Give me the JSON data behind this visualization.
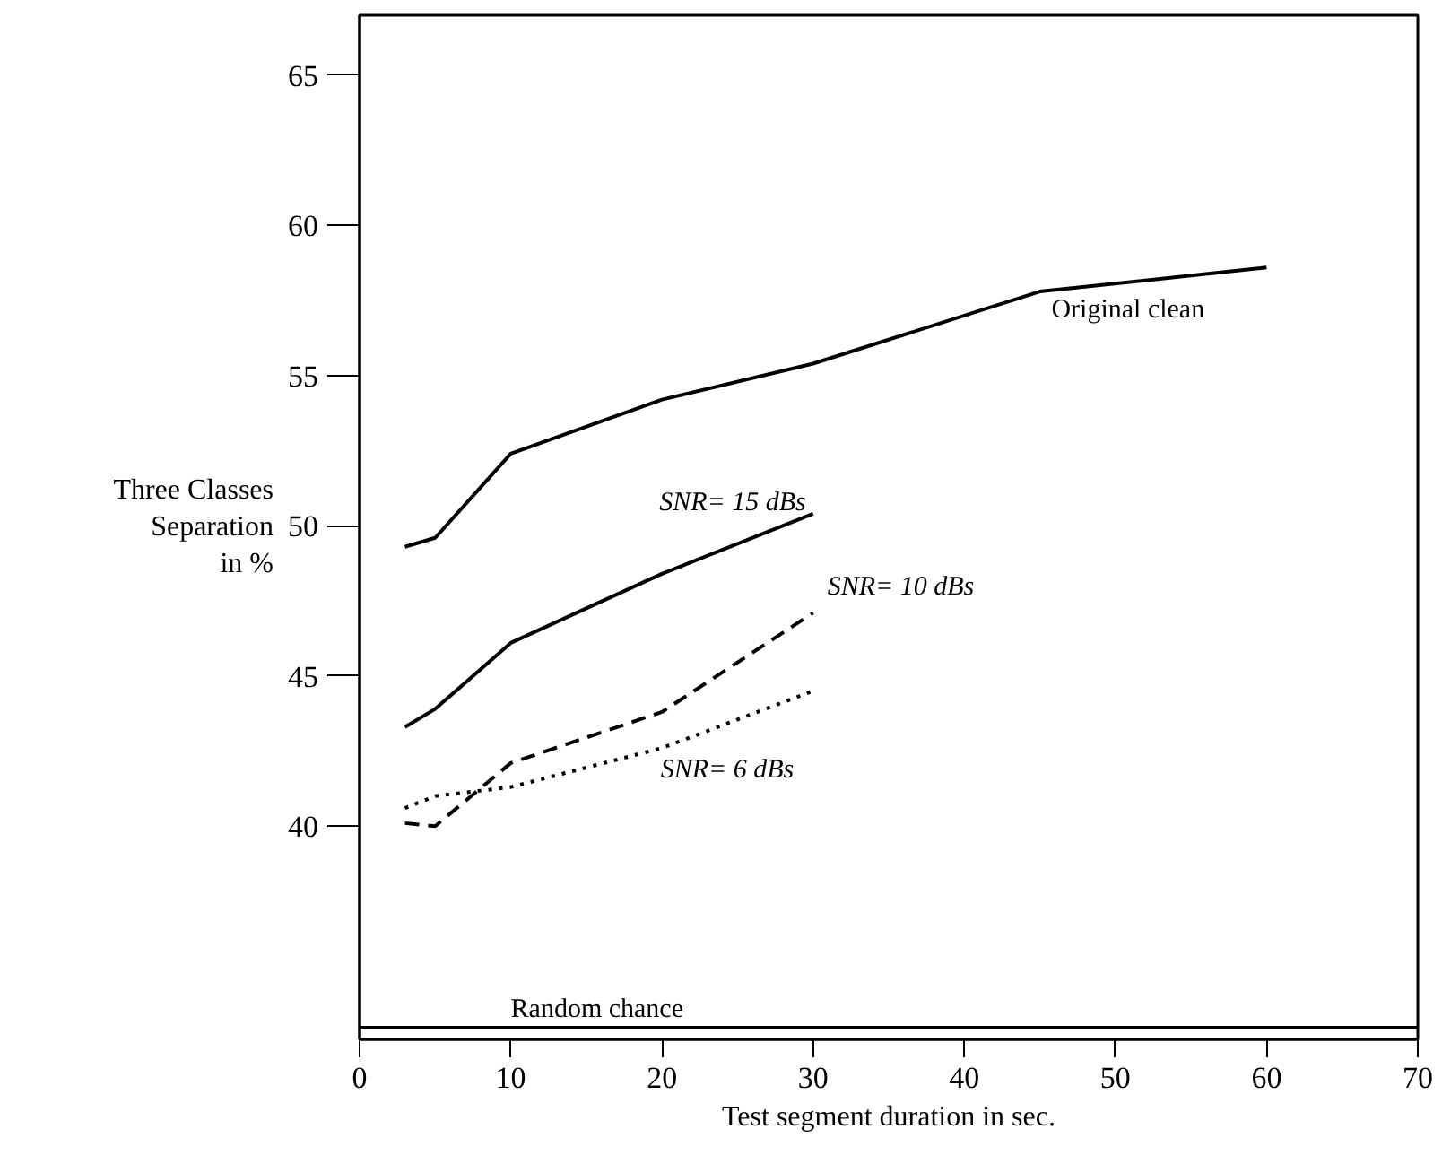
{
  "chart_data": {
    "type": "line",
    "xlabel": "Test segment duration in sec.",
    "ylabel": "Three Classes\nSeparation\nin %",
    "xlim": [
      0,
      70
    ],
    "xticks": [
      0,
      10,
      20,
      30,
      40,
      50,
      60,
      70
    ],
    "ylim": [
      32.9,
      67
    ],
    "yticks": [
      40,
      45,
      50,
      55,
      60,
      65
    ],
    "grid": false,
    "marker": "none",
    "ref_lines": [
      {
        "axis": "y",
        "value": 33.3,
        "label": "Random chance",
        "color": "#000000"
      }
    ],
    "series": [
      {
        "name": "Original clean",
        "color": "#000000",
        "line_style": "solid",
        "x": [
          3,
          5,
          10,
          20,
          30,
          45,
          60
        ],
        "values": [
          49.3,
          49.6,
          52.4,
          54.2,
          55.4,
          57.8,
          58.6
        ]
      },
      {
        "name": "SNR= 15 dBs",
        "color": "#000000",
        "line_style": "solid",
        "x": [
          3,
          5,
          10,
          20,
          30
        ],
        "values": [
          43.3,
          43.9,
          46.1,
          48.4,
          50.4
        ]
      },
      {
        "name": "SNR= 10 dBs",
        "color": "#000000",
        "line_style": "dashed",
        "x": [
          3,
          5,
          10,
          20,
          30
        ],
        "values": [
          40.1,
          40.0,
          42.1,
          43.8,
          47.1
        ]
      },
      {
        "name": "SNR=  6 dBs",
        "color": "#000000",
        "line_style": "dotted",
        "x": [
          3,
          5,
          10,
          20,
          30
        ],
        "values": [
          40.6,
          41.0,
          41.3,
          42.6,
          44.5
        ]
      }
    ]
  }
}
